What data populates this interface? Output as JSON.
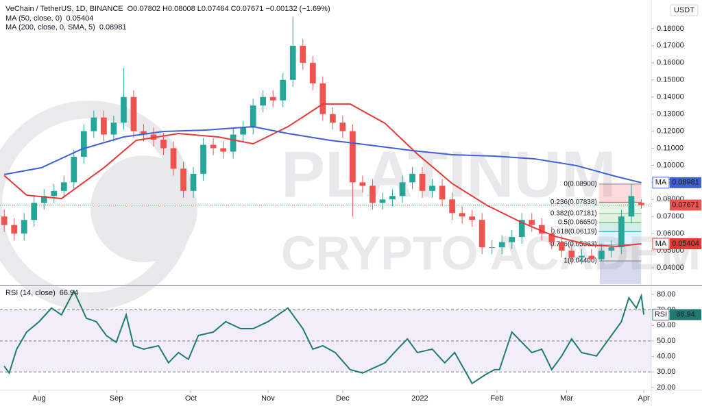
{
  "chart_data": [
    {
      "type": "candlestick",
      "title": "VeChain / TetherUS, 1D, BINANCE",
      "subtitle": "O0.07802 H0.08008 L0.07464 C0.07671 −0.00132 (−1.69%)",
      "y_axis_label": "USDT",
      "watermark": [
        "PLATINUM",
        "CRYPTO ACADEMY"
      ],
      "up_color": "#26a69a",
      "down_color": "#ef5350",
      "x": [
        -14,
        -10,
        -6,
        -2,
        2,
        6,
        10,
        14,
        18,
        22,
        26,
        30,
        34,
        38,
        42,
        46,
        50,
        54,
        58,
        62,
        66,
        70,
        74,
        78,
        82,
        86,
        90,
        94,
        98,
        102,
        106,
        110,
        114,
        118,
        122,
        126,
        130,
        134,
        138,
        142,
        146,
        150,
        154,
        158,
        162,
        166,
        170,
        174,
        178,
        182,
        186,
        190,
        194,
        198,
        202,
        206,
        210,
        214,
        218,
        222,
        226,
        230,
        234,
        238,
        242
      ],
      "open": [
        0.07,
        0.065,
        0.06,
        0.068,
        0.078,
        0.082,
        0.085,
        0.09,
        0.105,
        0.12,
        0.128,
        0.118,
        0.125,
        0.14,
        0.12,
        0.118,
        0.115,
        0.11,
        0.098,
        0.085,
        0.095,
        0.112,
        0.11,
        0.108,
        0.118,
        0.122,
        0.135,
        0.14,
        0.138,
        0.15,
        0.17,
        0.16,
        0.148,
        0.13,
        0.125,
        0.12,
        0.09,
        0.088,
        0.078,
        0.08,
        0.082,
        0.09,
        0.095,
        0.085,
        0.088,
        0.08,
        0.072,
        0.07,
        0.068,
        0.052,
        0.052,
        0.055,
        0.058,
        0.068,
        0.065,
        0.06,
        0.055,
        0.05,
        0.046,
        0.047,
        0.045,
        0.05,
        0.052,
        0.07,
        0.07802
      ],
      "high": [
        0.074,
        0.069,
        0.072,
        0.082,
        0.086,
        0.089,
        0.094,
        0.109,
        0.124,
        0.132,
        0.132,
        0.129,
        0.157,
        0.144,
        0.124,
        0.122,
        0.119,
        0.114,
        0.102,
        0.099,
        0.116,
        0.116,
        0.114,
        0.122,
        0.126,
        0.139,
        0.144,
        0.144,
        0.154,
        0.187,
        0.174,
        0.164,
        0.152,
        0.134,
        0.129,
        0.124,
        0.094,
        0.092,
        0.084,
        0.086,
        0.094,
        0.099,
        0.099,
        0.092,
        0.092,
        0.084,
        0.076,
        0.074,
        0.072,
        0.056,
        0.059,
        0.062,
        0.072,
        0.072,
        0.069,
        0.064,
        0.059,
        0.054,
        0.051,
        0.051,
        0.054,
        0.056,
        0.074,
        0.089,
        0.08008
      ],
      "low": [
        0.061,
        0.056,
        0.056,
        0.064,
        0.074,
        0.078,
        0.081,
        0.086,
        0.101,
        0.116,
        0.114,
        0.114,
        0.121,
        0.116,
        0.114,
        0.111,
        0.106,
        0.094,
        0.081,
        0.081,
        0.091,
        0.106,
        0.104,
        0.104,
        0.114,
        0.118,
        0.131,
        0.134,
        0.134,
        0.146,
        0.156,
        0.144,
        0.126,
        0.121,
        0.116,
        0.07,
        0.084,
        0.074,
        0.074,
        0.076,
        0.078,
        0.086,
        0.081,
        0.081,
        0.076,
        0.068,
        0.066,
        0.064,
        0.048,
        0.048,
        0.048,
        0.051,
        0.054,
        0.061,
        0.056,
        0.051,
        0.046,
        0.042,
        0.042,
        0.044,
        0.044,
        0.046,
        0.048,
        0.066,
        0.07464
      ],
      "close": [
        0.065,
        0.06,
        0.068,
        0.078,
        0.082,
        0.085,
        0.09,
        0.105,
        0.12,
        0.128,
        0.118,
        0.125,
        0.14,
        0.12,
        0.118,
        0.115,
        0.11,
        0.098,
        0.085,
        0.095,
        0.112,
        0.11,
        0.108,
        0.118,
        0.122,
        0.135,
        0.14,
        0.138,
        0.15,
        0.17,
        0.16,
        0.148,
        0.13,
        0.125,
        0.12,
        0.09,
        0.088,
        0.078,
        0.08,
        0.082,
        0.09,
        0.095,
        0.085,
        0.088,
        0.08,
        0.072,
        0.07,
        0.068,
        0.052,
        0.052,
        0.055,
        0.058,
        0.068,
        0.065,
        0.06,
        0.055,
        0.05,
        0.046,
        0.047,
        0.045,
        0.05,
        0.052,
        0.07,
        0.082,
        0.07671
      ],
      "last_price_color": "#ef5350",
      "series": [
        {
          "name": "MA (50, close, 0)",
          "tag": "MA",
          "color": "#e53935",
          "x": [
            -14,
            -5,
            9,
            26,
            39,
            56,
            72,
            86,
            100,
            114,
            125,
            139,
            152,
            166,
            180,
            194,
            207,
            221,
            232,
            242
          ],
          "values": [
            0.094,
            0.0825,
            0.0805,
            0.0985,
            0.1146,
            0.1186,
            0.1166,
            0.1126,
            0.1226,
            0.1359,
            0.1359,
            0.1246,
            0.1066,
            0.0893,
            0.0765,
            0.0665,
            0.0585,
            0.0533,
            0.0525,
            0.05404
          ]
        },
        {
          "name": "MA (200, close, 0, SMA, 5)",
          "tag": "MA",
          "color": "#3f5fd6",
          "x": [
            -14,
            1,
            17,
            34,
            50,
            67,
            86,
            100,
            117,
            133,
            150,
            166,
            183,
            199,
            216,
            232,
            242
          ],
          "values": [
            0.0946,
            0.0986,
            0.1094,
            0.1166,
            0.1198,
            0.1206,
            0.1226,
            0.1186,
            0.1146,
            0.1118,
            0.1086,
            0.1062,
            0.1054,
            0.1038,
            0.0998,
            0.0934,
            0.08981
          ]
        }
      ],
      "fib_x": [
        225,
        242
      ],
      "fib_levels": [
        {
          "value": 0.089,
          "label": "0(0.08900)"
        },
        {
          "value": 0.07838,
          "label": "0.236(0.07838)"
        },
        {
          "value": 0.07181,
          "label": "0.382(0.07181)"
        },
        {
          "value": 0.0665,
          "label": "0.5(0.06650)"
        },
        {
          "value": 0.06119,
          "label": "0.618(0.06119)"
        },
        {
          "value": 0.05363,
          "label": "0.786(0.05363)"
        },
        {
          "value": 0.044,
          "label": "1(0.04400)"
        }
      ],
      "fib_colors": [
        "#787b86",
        "#f23645",
        "#81c784",
        "#4caf50",
        "#089981",
        "#64b5f6",
        "#787b86"
      ],
      "xlim": [
        -15.7,
        246
      ],
      "ylim": [
        0.0304,
        0.1968
      ],
      "yticks": [
        {
          "value": 0.04,
          "label": "0.04000"
        },
        {
          "value": 0.05,
          "label": "0.05000"
        },
        {
          "value": 0.06,
          "label": "0.06000"
        },
        {
          "value": 0.07,
          "label": "0.07000"
        },
        {
          "value": 0.08,
          "label": "0.08000"
        },
        {
          "value": 0.09,
          "label": "0.09000"
        },
        {
          "value": 0.1,
          "label": "0.10000"
        },
        {
          "value": 0.11,
          "label": "0.11000"
        },
        {
          "value": 0.12,
          "label": "0.12000"
        },
        {
          "value": 0.13,
          "label": "0.13000"
        },
        {
          "value": 0.14,
          "label": "0.14000"
        },
        {
          "value": 0.15,
          "label": "0.15000"
        },
        {
          "value": 0.16,
          "label": "0.16000"
        },
        {
          "value": 0.17,
          "label": "0.17000"
        },
        {
          "value": 0.18,
          "label": "0.18000"
        }
      ],
      "grid": false
    },
    {
      "type": "line",
      "series": [
        {
          "name": "RSI (14, close)",
          "tag": "RSI",
          "color": "#1f7a72",
          "x": [
            -14,
            -12,
            -9,
            -5,
            0,
            5,
            9,
            14,
            19,
            23,
            27,
            31,
            35,
            38,
            42,
            48,
            52,
            56,
            60,
            64,
            70,
            75,
            81,
            86,
            92,
            96,
            100,
            106,
            110,
            114,
            119,
            125,
            130,
            139,
            144,
            148,
            152,
            158,
            163,
            167,
            174,
            179,
            183,
            185,
            190,
            194,
            198,
            202,
            206,
            210,
            214,
            218,
            224,
            229,
            234,
            237,
            240,
            242,
            243
          ],
          "values": [
            33.7,
            29.3,
            44.7,
            55.7,
            62.4,
            71.2,
            66.8,
            82.2,
            64.6,
            62.4,
            53.5,
            49.1,
            66.8,
            46.9,
            44.7,
            46.9,
            35.9,
            42.5,
            38.1,
            53.5,
            55.7,
            62.4,
            57.9,
            57.9,
            62.4,
            66.8,
            71.2,
            57.9,
            44.7,
            46.9,
            42.5,
            31.5,
            29.3,
            35.9,
            44.7,
            51.3,
            42.5,
            44.7,
            35.9,
            42.5,
            22.6,
            27.9,
            31.5,
            31.5,
            55.7,
            49.1,
            42.5,
            44.7,
            31.5,
            40.3,
            51.3,
            42.5,
            40.3,
            51.3,
            62.4,
            77.8,
            71.2,
            79.1,
            66.94
          ]
        }
      ],
      "band": [
        30,
        70
      ],
      "band_color": "#7e57c2",
      "dashed_levels": [
        30,
        50,
        70
      ],
      "xlim": [
        -15.7,
        246
      ],
      "ylim": [
        18.2,
        84.4
      ],
      "yticks": [
        {
          "value": 20,
          "label": "20.00"
        },
        {
          "value": 30,
          "label": "30.00"
        },
        {
          "value": 40,
          "label": "40.00"
        },
        {
          "value": 50,
          "label": "50.00"
        },
        {
          "value": 60,
          "label": "60.00"
        },
        {
          "value": 70,
          "label": "70.00"
        },
        {
          "value": 80,
          "label": "80.00"
        }
      ],
      "xticks": [
        {
          "value": 0,
          "label": "Aug"
        },
        {
          "value": 31,
          "label": "Sep"
        },
        {
          "value": 61,
          "label": "Oct"
        },
        {
          "value": 92,
          "label": "Nov"
        },
        {
          "value": 122,
          "label": "Dec"
        },
        {
          "value": 153,
          "label": "2022"
        },
        {
          "value": 184,
          "label": "Feb"
        },
        {
          "value": 212,
          "label": "Mar"
        },
        {
          "value": 243,
          "label": "Apr"
        }
      ],
      "grid": false
    }
  ]
}
